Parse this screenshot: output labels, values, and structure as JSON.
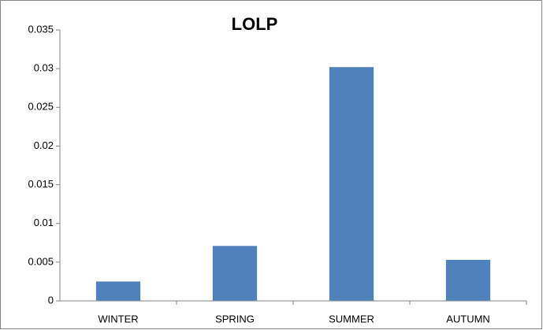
{
  "chart_data": {
    "type": "bar",
    "title": "LOLP",
    "categories": [
      "WINTER",
      "SPRING",
      "SUMMER",
      "AUTUMN"
    ],
    "values": [
      0.0025,
      0.0071,
      0.0302,
      0.0053
    ],
    "color": "#4f81bd",
    "ylim": [
      0,
      0.035
    ],
    "yticks": [
      0,
      0.005,
      0.01,
      0.015,
      0.02,
      0.025,
      0.03,
      0.035
    ],
    "grid": false
  }
}
